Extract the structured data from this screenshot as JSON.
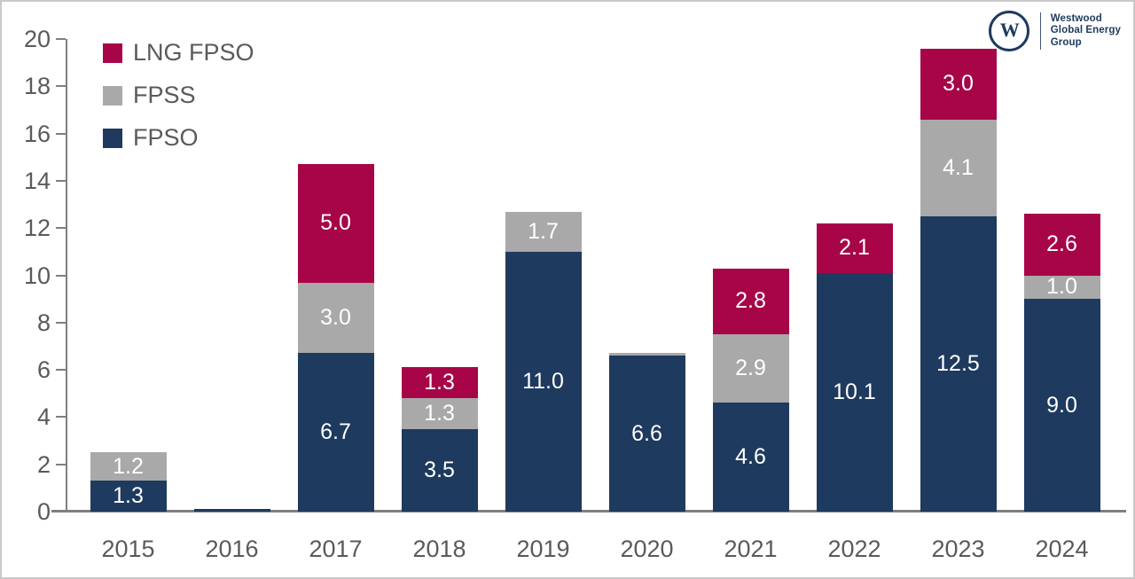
{
  "chart_data": {
    "type": "bar",
    "stacked": true,
    "title": "",
    "categories": [
      "2015",
      "2016",
      "2017",
      "2018",
      "2019",
      "2020",
      "2021",
      "2022",
      "2023",
      "2024"
    ],
    "series": [
      {
        "name": "FPSO",
        "color": "#1e3a5f",
        "values": [
          1.3,
          0.1,
          6.7,
          3.5,
          11.0,
          6.6,
          4.6,
          10.1,
          12.5,
          9.0
        ]
      },
      {
        "name": "FPSS",
        "color": "#a9a9a9",
        "values": [
          1.2,
          0,
          3.0,
          1.3,
          1.7,
          0.1,
          2.9,
          0,
          4.1,
          1.0
        ]
      },
      {
        "name": "LNG FPSO",
        "color": "#a70548",
        "values": [
          0,
          0,
          5.0,
          1.3,
          0,
          0,
          2.8,
          2.1,
          3.0,
          2.6
        ]
      }
    ],
    "legend": {
      "position": "top-left",
      "order": [
        "LNG FPSO",
        "FPSS",
        "FPSO"
      ]
    },
    "ylim": [
      0,
      20
    ],
    "ytick_step": 2,
    "yticks": [
      "0",
      "2",
      "4",
      "6",
      "8",
      "10",
      "12",
      "14",
      "16",
      "18",
      "20"
    ],
    "grid": "off",
    "value_label_min": 1.0,
    "value_label_decimals": 1,
    "value_label_color": "#ffffff",
    "axis_color": "#7f7f7f",
    "axis_text_color": "#5a5a5a"
  },
  "logo": {
    "monogram": "W",
    "lines": [
      "Westwood",
      "Global Energy",
      "Group"
    ],
    "color": "#1e3a5f"
  }
}
